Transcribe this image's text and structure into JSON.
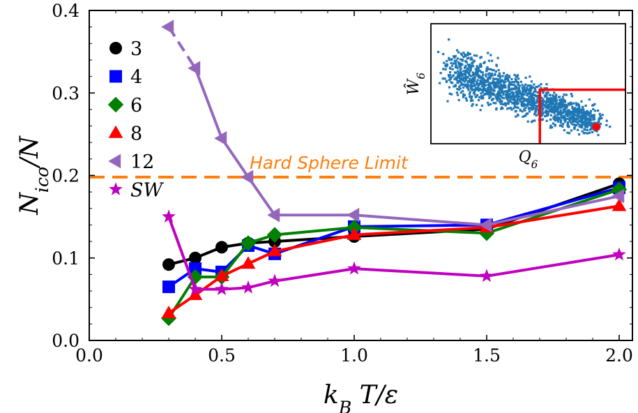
{
  "chart_data": {
    "type": "line",
    "xlabel": "k_B T/ε",
    "ylabel": "N_ico/N",
    "xlim": [
      0.0,
      2.05
    ],
    "ylim": [
      0.0,
      0.4
    ],
    "xticks": [
      "0.0",
      "0.5",
      "1.0",
      "1.5",
      "2.0"
    ],
    "yticks": [
      "0.0",
      "0.1",
      "0.2",
      "0.3",
      "0.4"
    ],
    "legend_position": "top-left",
    "grid": false,
    "series": [
      {
        "name": "3",
        "color": "#000000",
        "marker": "circle",
        "points": [
          [
            0.3,
            0.092
          ],
          [
            0.4,
            0.1
          ],
          [
            0.5,
            0.113
          ],
          [
            0.6,
            0.118
          ],
          [
            0.7,
            0.12
          ],
          [
            1.0,
            0.126
          ],
          [
            1.5,
            0.135
          ],
          [
            2.0,
            0.19
          ]
        ]
      },
      {
        "name": "4",
        "color": "#0000ff",
        "marker": "square",
        "points": [
          [
            0.3,
            0.065
          ],
          [
            0.4,
            0.087
          ],
          [
            0.5,
            0.083
          ],
          [
            0.6,
            0.115
          ],
          [
            0.7,
            0.105
          ],
          [
            1.0,
            0.138
          ],
          [
            1.5,
            0.14
          ],
          [
            2.0,
            0.185
          ]
        ]
      },
      {
        "name": "6",
        "color": "#008000",
        "marker": "diamond",
        "points": [
          [
            0.3,
            0.027
          ],
          [
            0.4,
            0.077
          ],
          [
            0.5,
            0.077
          ],
          [
            0.6,
            0.118
          ],
          [
            0.7,
            0.128
          ],
          [
            1.0,
            0.137
          ],
          [
            1.5,
            0.13
          ],
          [
            2.0,
            0.183
          ]
        ]
      },
      {
        "name": "8",
        "color": "#ff0000",
        "marker": "triangle-up",
        "points": [
          [
            0.3,
            0.033
          ],
          [
            0.4,
            0.055
          ],
          [
            0.5,
            0.078
          ],
          [
            0.6,
            0.093
          ],
          [
            0.7,
            0.108
          ],
          [
            1.0,
            0.128
          ],
          [
            1.5,
            0.137
          ],
          [
            2.0,
            0.163
          ]
        ]
      },
      {
        "name": "12",
        "color": "#9467bd",
        "marker": "triangle-left",
        "points": [
          [
            0.3,
            0.38
          ],
          [
            0.4,
            0.33
          ],
          [
            0.5,
            0.245
          ],
          [
            0.6,
            0.198
          ],
          [
            0.7,
            0.152
          ],
          [
            1.0,
            0.152
          ],
          [
            1.5,
            0.14
          ],
          [
            2.0,
            0.175
          ]
        ],
        "dashed_segments": [
          0
        ]
      },
      {
        "name": "SW",
        "color": "#bf00bf",
        "marker": "star",
        "points": [
          [
            0.3,
            0.15
          ],
          [
            0.4,
            0.062
          ],
          [
            0.5,
            0.062
          ],
          [
            0.6,
            0.064
          ],
          [
            0.7,
            0.072
          ],
          [
            1.0,
            0.087
          ],
          [
            1.5,
            0.078
          ],
          [
            2.0,
            0.104
          ]
        ]
      }
    ],
    "hline": {
      "y": 0.198,
      "color": "#ff7f0e",
      "label": "Hard Sphere Limit"
    },
    "inset": {
      "type": "scatter",
      "xlabel": "Q_6",
      "ylabel": "Ŵ_6",
      "point_color": "#1f77b4",
      "highlight_color": "#ff0000",
      "xlim": [
        0,
        1
      ],
      "ylim": [
        0,
        1
      ],
      "highlight_point": [
        0.85,
        0.14
      ],
      "threshold_x": 0.56,
      "threshold_y": 0.45
    }
  }
}
